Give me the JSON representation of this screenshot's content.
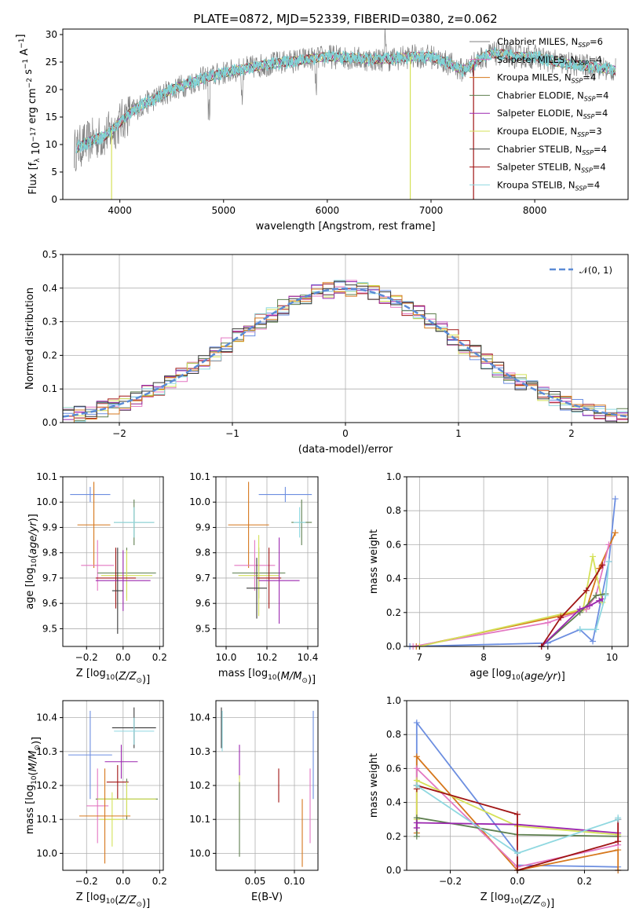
{
  "chart_data": [
    {
      "id": "spectrum",
      "type": "line",
      "title": "PLATE=0872, MJD=52339, FIBERID=0380, z=0.062",
      "xlabel": "wavelength [Angstrom, rest frame]",
      "ylabel": "Flux [f_λ 10^-17 erg cm^-2 s^-1 A^-1]",
      "xlim": [
        3450,
        8900
      ],
      "ylim": [
        0,
        31
      ],
      "xticks": [
        4000,
        5000,
        6000,
        7000,
        8000
      ],
      "yticks": [
        0,
        5,
        10,
        15,
        20,
        25,
        30
      ],
      "grid": false,
      "legend_position": "top-right",
      "data_color": "#808080",
      "model_color": "#7fd3d6",
      "continuum": {
        "x": [
          3560,
          3650,
          3750,
          3850,
          3950,
          4050,
          4150,
          4250,
          4350,
          4500,
          4650,
          4800,
          5000,
          5200,
          5400,
          5600,
          5800,
          6000,
          6200,
          6400,
          6600,
          6800,
          7000,
          7200,
          7300,
          7400,
          7500,
          7600,
          7700,
          7800,
          8000,
          8200,
          8400,
          8600,
          8780
        ],
        "y": [
          9,
          10,
          11,
          11.5,
          13,
          15,
          16.5,
          17.5,
          18.5,
          20,
          21,
          22,
          23,
          23.8,
          24.5,
          25,
          25.5,
          26,
          25.8,
          25.5,
          25.5,
          26,
          26,
          24.5,
          23.5,
          24.5,
          26,
          26.5,
          26.5,
          26,
          26,
          25,
          24.5,
          24,
          23.5
        ]
      },
      "series": [
        {
          "name": "Chabrier MILES, N_SSP=6",
          "color": "#808080"
        },
        {
          "name": "Salpeter MILES, N_SSP=4",
          "color": "#e377c2"
        },
        {
          "name": "Kroupa MILES, N_SSP=4",
          "color": "#d6771c"
        },
        {
          "name": "Chabrier ELODIE, N_SSP=4",
          "color": "#5e7f4f"
        },
        {
          "name": "Salpeter ELODIE, N_SSP=4",
          "color": "#9b27af"
        },
        {
          "name": "Kroupa ELODIE, N_SSP=3",
          "color": "#d4e157"
        },
        {
          "name": "Chabrier STELIB, N_SSP=4",
          "color": "#3a3a3a"
        },
        {
          "name": "Salpeter STELIB, N_SSP=4",
          "color": "#a01414"
        },
        {
          "name": "Kroupa STELIB, N_SSP=4",
          "color": "#8fd8e0"
        }
      ]
    },
    {
      "id": "residuals",
      "type": "line",
      "xlabel": "(data-model)/error",
      "ylabel": "Normed distribution",
      "xlim": [
        -2.5,
        2.5
      ],
      "ylim": [
        0,
        0.5
      ],
      "xticks": [
        -2,
        -1,
        0,
        1,
        2
      ],
      "yticks": [
        0.0,
        0.1,
        0.2,
        0.3,
        0.4,
        0.5
      ],
      "grid": true,
      "legend_position": "top-right",
      "gaussian": {
        "name": "𝒩(0, 1)",
        "color": "#5b8bd6",
        "mu": 0,
        "sigma": 1
      },
      "bin_width": 0.1,
      "colors": [
        "#6c8ee0",
        "#e377c2",
        "#a01414",
        "#5e7f4f",
        "#d4e157",
        "#9b27af",
        "#8fd8e0",
        "#d6771c",
        "#3a3a3a"
      ]
    },
    {
      "id": "age_vs_Z",
      "type": "scatter",
      "xlabel": "Z [log10(Z/Z⊙)]",
      "ylabel": "age  [log10(age/yr)]",
      "xlim": [
        -0.33,
        0.22
      ],
      "ylim": [
        9.43,
        10.1
      ],
      "xticks": [
        -0.2,
        0.0,
        0.2
      ],
      "yticks": [
        9.5,
        9.6,
        9.7,
        9.8,
        9.9,
        10.0,
        10.1
      ],
      "grid": true,
      "points": [
        {
          "x": -0.18,
          "y": 10.03,
          "xerr": 0.11,
          "yerr": 0.03,
          "color": "#6c8ee0"
        },
        {
          "x": -0.16,
          "y": 9.91,
          "xerr": 0.09,
          "yerr": 0.17,
          "color": "#d6771c"
        },
        {
          "x": 0.06,
          "y": 9.92,
          "xerr": 0.11,
          "yerr": 0.09,
          "color": "#5e7f4f"
        },
        {
          "x": 0.06,
          "y": 9.92,
          "xerr": 0.11,
          "yerr": 0.06,
          "color": "#8fd8e0"
        },
        {
          "x": -0.14,
          "y": 9.75,
          "xerr": 0.09,
          "yerr": 0.1,
          "color": "#e377c2"
        },
        {
          "x": 0.02,
          "y": 9.72,
          "xerr": 0.16,
          "yerr": 0.1,
          "color": "#5e7f4f"
        },
        {
          "x": 0.02,
          "y": 9.71,
          "xerr": 0.14,
          "yerr": 0.1,
          "color": "#d4e157"
        },
        {
          "x": -0.04,
          "y": 9.7,
          "xerr": 0.11,
          "yerr": 0.12,
          "color": "#a01414"
        },
        {
          "x": 0.0,
          "y": 9.69,
          "xerr": 0.15,
          "yerr": 0.12,
          "color": "#9b27af"
        },
        {
          "x": -0.03,
          "y": 9.65,
          "xerr": 0.03,
          "yerr": 0.17,
          "color": "#3a3a3a"
        }
      ]
    },
    {
      "id": "age_vs_mass",
      "type": "scatter",
      "xlabel": "mass [log10(M/M⊙)]",
      "xlim": [
        9.95,
        10.45
      ],
      "ylim": [
        9.43,
        10.1
      ],
      "xticks": [
        10.0,
        10.2,
        10.4
      ],
      "yticks": [
        9.5,
        9.6,
        9.7,
        9.8,
        9.9,
        10.0,
        10.1
      ],
      "grid": true,
      "points": [
        {
          "x": 10.29,
          "y": 10.03,
          "xerr": 0.13,
          "yerr": 0.03,
          "color": "#6c8ee0"
        },
        {
          "x": 10.11,
          "y": 9.91,
          "xerr": 0.1,
          "yerr": 0.17,
          "color": "#d6771c"
        },
        {
          "x": 10.37,
          "y": 9.92,
          "xerr": 0.05,
          "yerr": 0.09,
          "color": "#5e7f4f"
        },
        {
          "x": 10.36,
          "y": 9.92,
          "xerr": 0.03,
          "yerr": 0.06,
          "color": "#8fd8e0"
        },
        {
          "x": 10.14,
          "y": 9.75,
          "xerr": 0.1,
          "yerr": 0.1,
          "color": "#e377c2"
        },
        {
          "x": 10.16,
          "y": 9.72,
          "xerr": 0.13,
          "yerr": 0.1,
          "color": "#5e7f4f"
        },
        {
          "x": 10.16,
          "y": 9.71,
          "xerr": 0.1,
          "yerr": 0.16,
          "color": "#d4e157"
        },
        {
          "x": 10.21,
          "y": 9.7,
          "xerr": 0.06,
          "yerr": 0.12,
          "color": "#a01414"
        },
        {
          "x": 10.26,
          "y": 9.69,
          "xerr": 0.1,
          "yerr": 0.17,
          "color": "#9b27af"
        },
        {
          "x": 10.15,
          "y": 9.66,
          "xerr": 0.05,
          "yerr": 0.12,
          "color": "#3a3a3a"
        }
      ]
    },
    {
      "id": "weight_vs_age",
      "type": "line",
      "xlabel": "age  [log10(age/yr)]",
      "ylabel": "mass weight",
      "xlim": [
        6.8,
        10.25
      ],
      "ylim": [
        0,
        1.0
      ],
      "xticks": [
        7,
        8,
        9,
        10
      ],
      "yticks": [
        0.0,
        0.2,
        0.4,
        0.6,
        0.8,
        1.0
      ],
      "grid": true,
      "series": [
        {
          "color": "#6c8ee0",
          "x": [
            6.85,
            9.0,
            9.5,
            9.7,
            9.95,
            10.05
          ],
          "y": [
            0.0,
            0.02,
            0.1,
            0.03,
            0.5,
            0.87
          ]
        },
        {
          "color": "#d6771c",
          "x": [
            6.95,
            9.2,
            9.6,
            9.8,
            10.05
          ],
          "y": [
            0.0,
            0.18,
            0.22,
            0.46,
            0.67
          ]
        },
        {
          "color": "#e377c2",
          "x": [
            6.9,
            9.0,
            9.6,
            9.75,
            9.95
          ],
          "y": [
            0.0,
            0.14,
            0.22,
            0.3,
            0.6
          ]
        },
        {
          "color": "#d4e157",
          "x": [
            7.0,
            9.55,
            9.7,
            9.85
          ],
          "y": [
            0.0,
            0.22,
            0.53,
            0.26
          ]
        },
        {
          "color": "#5e7f4f",
          "x": [
            8.9,
            9.5,
            9.75,
            9.9
          ],
          "y": [
            0.0,
            0.2,
            0.3,
            0.31
          ]
        },
        {
          "color": "#9b27af",
          "x": [
            8.9,
            9.5,
            9.65,
            9.8,
            9.85
          ],
          "y": [
            0.0,
            0.22,
            0.24,
            0.27,
            0.28
          ]
        },
        {
          "color": "#a01414",
          "x": [
            8.9,
            9.2,
            9.6,
            9.85
          ],
          "y": [
            0.0,
            0.17,
            0.33,
            0.48
          ]
        },
        {
          "color": "#8fd8e0",
          "x": [
            9.5,
            9.75,
            9.9,
            9.95
          ],
          "y": [
            0.1,
            0.1,
            0.3,
            0.5
          ]
        }
      ]
    },
    {
      "id": "mass_vs_Z",
      "type": "scatter",
      "xlabel": "Z [log10(Z/Z⊙)]",
      "ylabel": "mass [log10(M/M⊙)]",
      "xlim": [
        -0.33,
        0.22
      ],
      "ylim": [
        9.95,
        10.45
      ],
      "xticks": [
        -0.2,
        0.0,
        0.2
      ],
      "yticks": [
        10.0,
        10.1,
        10.2,
        10.3,
        10.4
      ],
      "grid": true,
      "points": [
        {
          "x": -0.18,
          "y": 10.29,
          "xerr": 0.12,
          "yerr": 0.13,
          "color": "#6c8ee0"
        },
        {
          "x": 0.06,
          "y": 10.37,
          "xerr": 0.12,
          "yerr": 0.06,
          "color": "#3a3a3a"
        },
        {
          "x": 0.06,
          "y": 10.36,
          "xerr": 0.11,
          "yerr": 0.04,
          "color": "#8fd8e0"
        },
        {
          "x": -0.01,
          "y": 10.27,
          "xerr": 0.09,
          "yerr": 0.05,
          "color": "#9b27af"
        },
        {
          "x": -0.03,
          "y": 10.21,
          "xerr": 0.06,
          "yerr": 0.05,
          "color": "#a01414"
        },
        {
          "x": -0.14,
          "y": 10.14,
          "xerr": 0.06,
          "yerr": 0.11,
          "color": "#e377c2"
        },
        {
          "x": 0.02,
          "y": 10.16,
          "xerr": 0.17,
          "yerr": 0.06,
          "color": "#5e7f4f"
        },
        {
          "x": 0.02,
          "y": 10.16,
          "xerr": 0.16,
          "yerr": 0.05,
          "color": "#d4e157"
        },
        {
          "x": -0.06,
          "y": 10.1,
          "xerr": 0.07,
          "yerr": 0.08,
          "color": "#d4e157"
        },
        {
          "x": -0.1,
          "y": 10.11,
          "xerr": 0.14,
          "yerr": 0.14,
          "color": "#d6771c"
        }
      ]
    },
    {
      "id": "mass_vs_EBV",
      "type": "scatter",
      "xlabel": "E(B-V)",
      "xlim": [
        0.0,
        0.13
      ],
      "ylim": [
        9.95,
        10.45
      ],
      "xticks": [
        0.05,
        0.1
      ],
      "yticks": [
        10.0,
        10.1,
        10.2,
        10.3,
        10.4
      ],
      "grid": true,
      "points": [
        {
          "x": 0.007,
          "y": 10.37,
          "yerr": 0.06,
          "color": "#3a3a3a"
        },
        {
          "x": 0.008,
          "y": 10.36,
          "yerr": 0.06,
          "color": "#8fd8e0"
        },
        {
          "x": 0.03,
          "y": 10.27,
          "yerr": 0.05,
          "color": "#9b27af"
        },
        {
          "x": 0.03,
          "y": 10.16,
          "yerr": 0.07,
          "color": "#d4e157"
        },
        {
          "x": 0.03,
          "y": 10.1,
          "yerr": 0.11,
          "color": "#5e7f4f"
        },
        {
          "x": 0.08,
          "y": 10.2,
          "yerr": 0.05,
          "color": "#a01414"
        },
        {
          "x": 0.11,
          "y": 10.06,
          "yerr": 0.1,
          "color": "#d6771c"
        },
        {
          "x": 0.12,
          "y": 10.14,
          "yerr": 0.11,
          "color": "#e377c2"
        },
        {
          "x": 0.124,
          "y": 10.29,
          "yerr": 0.13,
          "color": "#6c8ee0"
        }
      ]
    },
    {
      "id": "weight_vs_Z",
      "type": "line",
      "xlabel": "Z [log10(Z/Z⊙)]",
      "ylabel": "mass weight",
      "xlim": [
        -0.33,
        0.33
      ],
      "ylim": [
        0,
        1.0
      ],
      "xticks": [
        -0.2,
        0.0,
        0.2
      ],
      "yticks": [
        0.0,
        0.2,
        0.4,
        0.6,
        0.8,
        1.0
      ],
      "grid": true,
      "series": [
        {
          "color": "#6c8ee0",
          "x": [
            -0.3,
            -0.3,
            0.0,
            0.0,
            0.3,
            0.3
          ],
          "y": [
            0.5,
            0.87,
            0.1,
            0.03,
            0.02,
            0.0
          ]
        },
        {
          "color": "#d6771c",
          "x": [
            -0.3,
            -0.3,
            0.0,
            0.3,
            0.3
          ],
          "y": [
            0.22,
            0.67,
            0.0,
            0.12,
            0.0
          ]
        },
        {
          "color": "#e377c2",
          "x": [
            -0.3,
            -0.3,
            0.0,
            0.3,
            0.3
          ],
          "y": [
            0.25,
            0.6,
            0.02,
            0.15,
            0.3
          ]
        },
        {
          "color": "#d4e157",
          "x": [
            -0.3,
            -0.3,
            0.0,
            0.3
          ],
          "y": [
            0.3,
            0.53,
            0.26,
            0.21
          ]
        },
        {
          "color": "#5e7f4f",
          "x": [
            -0.3,
            -0.3,
            0.0,
            0.3
          ],
          "y": [
            0.2,
            0.31,
            0.21,
            0.2
          ]
        },
        {
          "color": "#9b27af",
          "x": [
            -0.3,
            -0.3,
            0.0,
            0.3
          ],
          "y": [
            0.25,
            0.28,
            0.27,
            0.22
          ]
        },
        {
          "color": "#a01414",
          "x": [
            -0.3,
            -0.3,
            0.0,
            0.0,
            0.3,
            0.3
          ],
          "y": [
            0.48,
            0.5,
            0.33,
            0.0,
            0.17,
            0.3
          ]
        },
        {
          "color": "#8fd8e0",
          "x": [
            -0.3,
            -0.3,
            0.0,
            0.3,
            0.3
          ],
          "y": [
            0.5,
            0.5,
            0.1,
            0.3,
            0.31
          ]
        }
      ]
    }
  ]
}
